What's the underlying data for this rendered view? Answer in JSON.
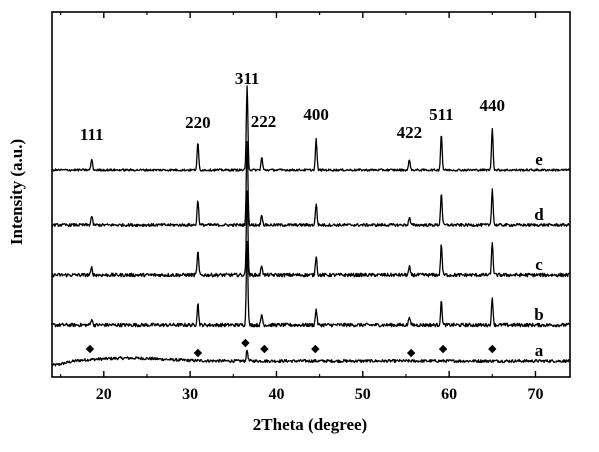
{
  "chart_data": {
    "type": "line",
    "title": "",
    "xlabel": "2Theta (degree)",
    "ylabel": "Intensity (a.u.)",
    "xlim": [
      14,
      74
    ],
    "x_ticks": [
      20,
      30,
      40,
      50,
      60,
      70
    ],
    "y_ticks_shown": false,
    "grid": false,
    "legend": "none",
    "line_color": "#000000",
    "peak_positions": [
      18.6,
      30.9,
      36.6,
      38.3,
      44.6,
      55.4,
      59.1,
      65.0
    ],
    "peak_labels": [
      {
        "text": "111",
        "x": 18.6
      },
      {
        "text": "220",
        "x": 30.9
      },
      {
        "text": "311",
        "x": 36.6
      },
      {
        "text": "222",
        "x": 38.5
      },
      {
        "text": "400",
        "x": 44.6
      },
      {
        "text": "422",
        "x": 55.4
      },
      {
        "text": "511",
        "x": 59.1
      },
      {
        "text": "440",
        "x": 65.0
      }
    ],
    "diamond_markers": [
      18.4,
      30.9,
      36.4,
      38.6,
      44.5,
      55.6,
      59.3,
      65.0
    ],
    "series": [
      {
        "name": "a",
        "baseline": 0.0,
        "peaks": [
          0,
          0,
          0.3,
          0,
          0,
          0,
          0,
          0
        ],
        "noise": 0.08
      },
      {
        "name": "b",
        "baseline": 1.0,
        "peaks": [
          0.18,
          0.6,
          2.35,
          0.3,
          0.45,
          0.25,
          0.65,
          0.75
        ],
        "noise": 0.1
      },
      {
        "name": "c",
        "baseline": 2.0,
        "peaks": [
          0.2,
          0.65,
          2.35,
          0.28,
          0.55,
          0.22,
          0.85,
          0.9
        ],
        "noise": 0.1
      },
      {
        "name": "d",
        "baseline": 3.0,
        "peaks": [
          0.25,
          0.7,
          2.35,
          0.3,
          0.6,
          0.22,
          0.9,
          1.0
        ],
        "noise": 0.08
      },
      {
        "name": "e",
        "baseline": 4.0,
        "peaks": [
          0.3,
          0.75,
          2.35,
          0.35,
          0.85,
          0.3,
          1.0,
          1.15
        ],
        "noise": 0.06
      }
    ]
  }
}
